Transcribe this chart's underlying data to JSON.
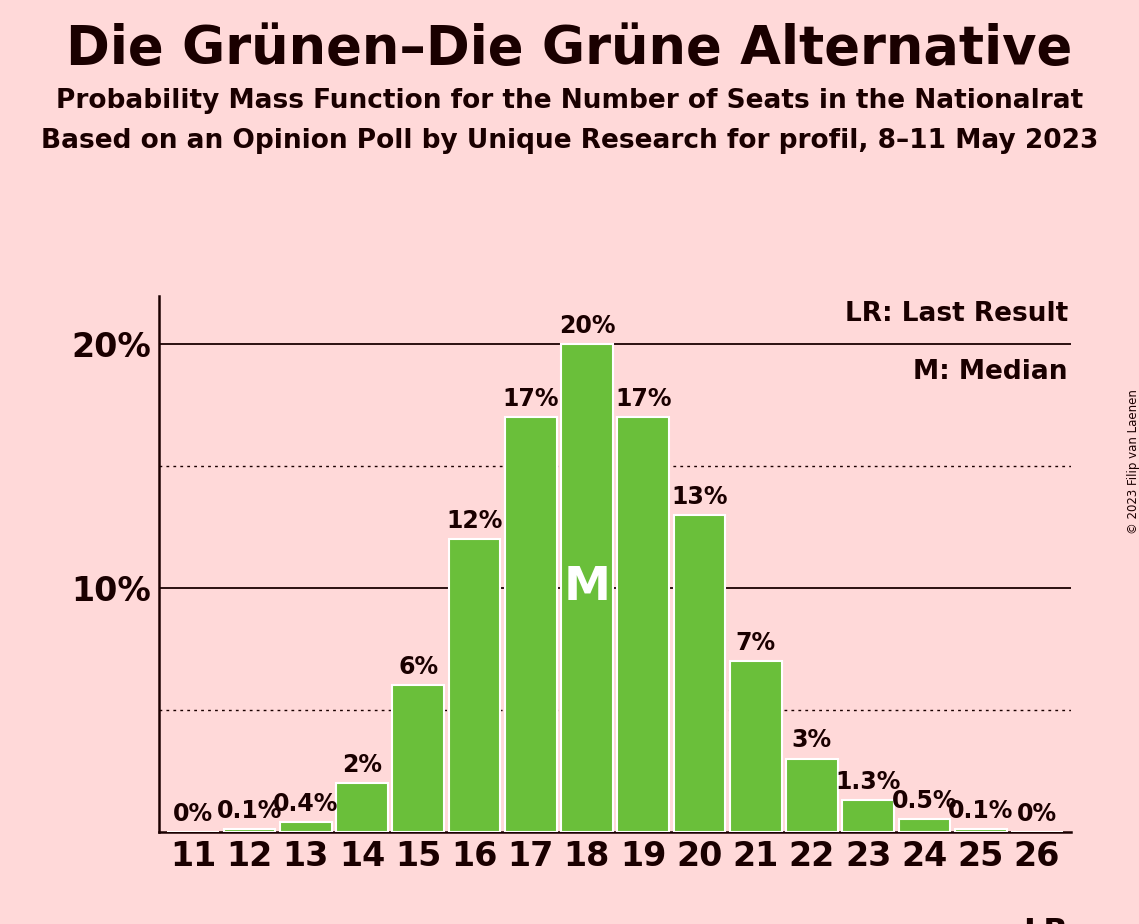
{
  "title": "Die Grünen–Die Grüne Alternative",
  "subtitle1": "Probability Mass Function for the Number of Seats in the Nationalrat",
  "subtitle2": "Based on an Opinion Poll by Unique Research for profil, 8–11 May 2023",
  "copyright": "© 2023 Filip van Laenen",
  "seats": [
    11,
    12,
    13,
    14,
    15,
    16,
    17,
    18,
    19,
    20,
    21,
    22,
    23,
    24,
    25,
    26
  ],
  "probabilities": [
    0.0,
    0.1,
    0.4,
    2.0,
    6.0,
    12.0,
    17.0,
    20.0,
    17.0,
    13.0,
    7.0,
    3.0,
    1.3,
    0.5,
    0.1,
    0.0
  ],
  "bar_color": "#6abf3a",
  "bar_edge_color": "white",
  "background_color": "#ffd9d9",
  "text_color": "#1a0000",
  "median_seat": 18,
  "lr_seat": 26,
  "ylim": [
    0,
    22
  ],
  "yticks": [
    10,
    20
  ],
  "ytick_labels": [
    "10%",
    "20%"
  ],
  "dotted_lines": [
    5,
    15
  ],
  "solid_lines": [
    10,
    20
  ],
  "legend_lr_text": "LR: Last Result",
  "legend_m_text": "M: Median",
  "lr_label": "LR",
  "median_label": "M",
  "title_fontsize": 38,
  "subtitle_fontsize": 19,
  "bar_label_fontsize": 17,
  "axis_fontsize": 24,
  "legend_fontsize": 19,
  "median_fontsize": 34
}
